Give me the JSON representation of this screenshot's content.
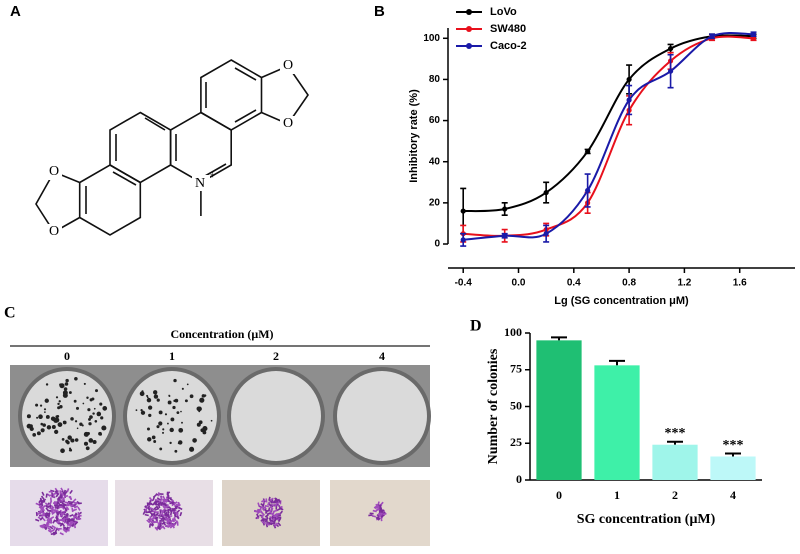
{
  "panels": [
    "A",
    "B",
    "C",
    "D"
  ],
  "structure": {
    "atom_labels": [
      "O",
      "O",
      "O",
      "O",
      "N"
    ],
    "charge": "+"
  },
  "colony_assay": {
    "title": "Concentration (μM)",
    "concentrations": [
      "0",
      "1",
      "2",
      "4"
    ]
  },
  "chart_data": [
    {
      "type": "line",
      "x_label": "Lg (SG concentration μM)",
      "y_label": "Inhibitory rate (%)",
      "x": [
        -0.4,
        -0.1,
        0.2,
        0.5,
        0.8,
        1.1,
        1.4,
        1.7
      ],
      "series": [
        {
          "name": "LoVo",
          "color": "#000000",
          "values": [
            16,
            17,
            25,
            45,
            80,
            95,
            101,
            101
          ],
          "errors": [
            11,
            3,
            5,
            1,
            7,
            2,
            1,
            1
          ]
        },
        {
          "name": "SW480",
          "color": "#e8101c",
          "values": [
            5,
            4,
            7,
            20,
            65,
            89,
            100,
            100
          ],
          "errors": [
            4,
            3,
            3,
            5,
            7,
            4,
            1,
            1
          ]
        },
        {
          "name": "Caco-2",
          "color": "#1a1aa8",
          "values": [
            2,
            4,
            5,
            26,
            70,
            84,
            101,
            102
          ],
          "errors": [
            3,
            1,
            4,
            8,
            7,
            8,
            1,
            1
          ]
        }
      ],
      "xlim": [
        -0.51,
        2.0
      ],
      "ylim": [
        0,
        105
      ],
      "xticks": [
        {
          "value": -0.4,
          "label": "-0.4"
        },
        {
          "value": 0,
          "label": "0.0"
        },
        0.4,
        0.8,
        1.2,
        1.6
      ],
      "yticks": [
        0,
        20,
        40,
        60,
        80,
        100
      ],
      "legend": "top-left"
    },
    {
      "type": "bar",
      "x_label": "SG concentration (μM)",
      "y_label": "Number of colonies",
      "categories": [
        "0",
        "1",
        "2",
        "4"
      ],
      "values": [
        95,
        78,
        24,
        16
      ],
      "errors": [
        2,
        3,
        2,
        2
      ],
      "colors": [
        "#1fbf73",
        "#3ef0a8",
        "#9ff5ea",
        "#bdf8f8"
      ],
      "significance": [
        null,
        null,
        "***",
        "***"
      ],
      "ylim": [
        0,
        100
      ],
      "yticks": [
        0,
        25,
        50,
        75,
        100
      ]
    }
  ]
}
